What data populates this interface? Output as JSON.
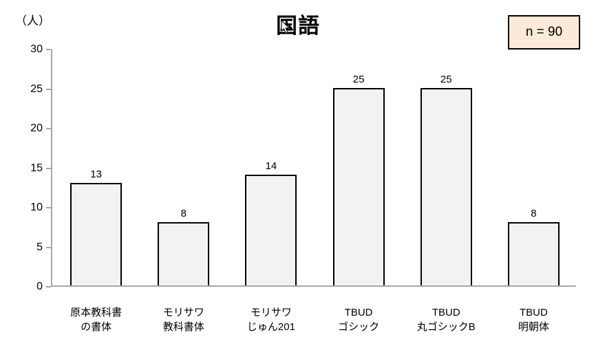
{
  "chart_data": {
    "type": "bar",
    "title": "国語",
    "unit_label": "（人）",
    "badge_label": "n = 90",
    "categories": [
      {
        "line1": "原本教科書",
        "line2": "の書体"
      },
      {
        "line1": "モリサワ",
        "line2": "教科書体"
      },
      {
        "line1": "モリサワ",
        "line2": "じゅん201"
      },
      {
        "line1": "TBUD",
        "line2": "ゴシック"
      },
      {
        "line1": "TBUD",
        "line2": "丸ゴシックB"
      },
      {
        "line1": "TBUD",
        "line2": "明朝体"
      }
    ],
    "values": [
      13,
      8,
      14,
      25,
      25,
      8
    ],
    "xlabel": "",
    "ylabel": "（人）",
    "ylim": [
      0,
      30
    ],
    "yticks": [
      0,
      5,
      10,
      15,
      20,
      25,
      30
    ],
    "grid": false,
    "legend_position": "none",
    "data_labels": true,
    "colors": {
      "bar_fill": "#F2F2F2",
      "bar_border": "#000000",
      "axis": "#A6A6A6",
      "badge_bg": "#FDE9D9",
      "badge_border": "#000000",
      "text": "#000000"
    }
  }
}
